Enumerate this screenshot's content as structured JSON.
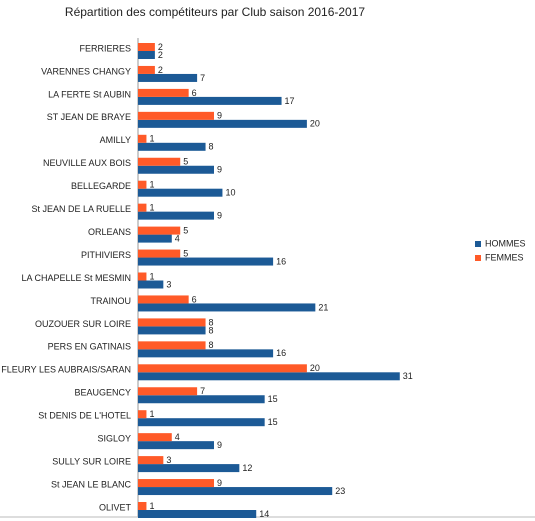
{
  "chart_data": {
    "type": "hbar",
    "title": "Répartition des compétiteurs par Club saison 2016-2017",
    "categories": [
      "FERRIERES",
      "VARENNES CHANGY",
      "LA FERTE St AUBIN",
      "ST JEAN DE BRAYE",
      "AMILLY",
      "NEUVILLE AUX BOIS",
      "BELLEGARDE",
      "St JEAN DE LA RUELLE",
      "ORLEANS",
      "PITHIVIERS",
      "LA CHAPELLE St MESMIN",
      "TRAINOU",
      "OUZOUER SUR LOIRE",
      "PERS EN GATINAIS",
      "FLEURY LES AUBRAIS/SARAN",
      "BEAUGENCY",
      "St DENIS DE L'HOTEL",
      "SIGLOY",
      "SULLY SUR LOIRE",
      "St JEAN LE BLANC",
      "OLIVET"
    ],
    "series": [
      {
        "name": "HOMMES",
        "color": "#1c5a96",
        "values": [
          2,
          7,
          17,
          20,
          8,
          9,
          10,
          9,
          4,
          16,
          3,
          21,
          8,
          16,
          31,
          15,
          15,
          9,
          12,
          23,
          14
        ]
      },
      {
        "name": "FEMMES",
        "color": "#ff5a28",
        "values": [
          2,
          2,
          6,
          9,
          1,
          5,
          1,
          1,
          5,
          5,
          1,
          6,
          8,
          8,
          20,
          7,
          1,
          4,
          3,
          9,
          1
        ]
      }
    ],
    "xlim": [
      0,
      45
    ],
    "legend": "right"
  }
}
